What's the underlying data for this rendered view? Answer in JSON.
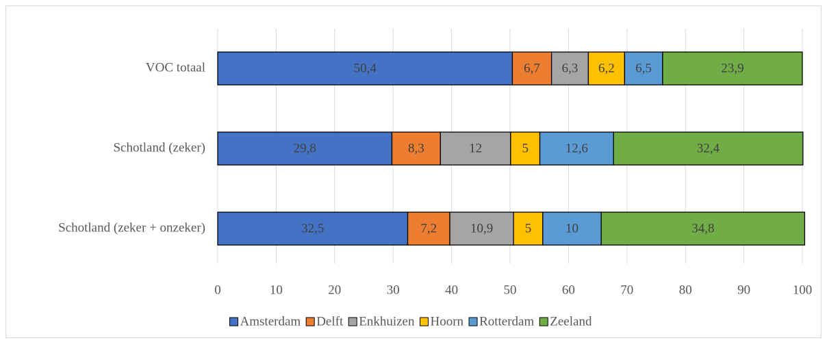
{
  "chart_data": {
    "type": "stacked_barh",
    "categories": [
      "VOC totaal",
      "Schotland (zeker)",
      "Schotland (zeker + onzeker)"
    ],
    "series": [
      {
        "name": "Amsterdam",
        "color": "#4472c4",
        "values": [
          50.4,
          29.8,
          32.5
        ],
        "value_labels": [
          "50,4",
          "29,8",
          "32,5"
        ]
      },
      {
        "name": "Delft",
        "color": "#ed7d31",
        "values": [
          6.7,
          8.3,
          7.2
        ],
        "value_labels": [
          "6,7",
          "8,3",
          "7,2"
        ]
      },
      {
        "name": "Enkhuizen",
        "color": "#a5a5a5",
        "values": [
          6.3,
          12,
          10.9
        ],
        "value_labels": [
          "6,3",
          "12",
          "10,9"
        ]
      },
      {
        "name": "Hoorn",
        "color": "#ffc000",
        "values": [
          6.2,
          5,
          5
        ],
        "value_labels": [
          "6,2",
          "5",
          "5"
        ]
      },
      {
        "name": "Rotterdam",
        "color": "#5b9bd5",
        "values": [
          6.5,
          12.6,
          10
        ],
        "value_labels": [
          "6,5",
          "12,6",
          "10"
        ]
      },
      {
        "name": "Zeeland",
        "color": "#70ad47",
        "values": [
          23.9,
          32.4,
          34.8
        ],
        "value_labels": [
          "23,9",
          "32,4",
          "34,8"
        ]
      }
    ],
    "xlim": [
      0,
      100
    ],
    "xticks": [
      0,
      10,
      20,
      30,
      40,
      50,
      60,
      70,
      80,
      90,
      100
    ],
    "grid": true,
    "legend": "bottom"
  }
}
